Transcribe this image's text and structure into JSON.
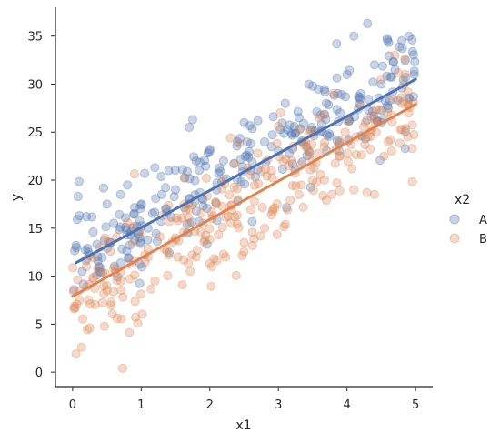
{
  "chart_data": {
    "type": "scatter",
    "title": "",
    "xlabel": "x1",
    "ylabel": "y",
    "xlim": [
      -0.25,
      5.25
    ],
    "ylim": [
      -1.5,
      38.0
    ],
    "xticks": [
      0,
      1,
      2,
      3,
      4,
      5
    ],
    "yticks": [
      0,
      5,
      10,
      15,
      20,
      25,
      30,
      35
    ],
    "grid": false,
    "legend": {
      "title": "x2",
      "placement": "right"
    },
    "series": [
      {
        "name": "A",
        "color": "#4c72b0",
        "n_points": 300,
        "fit": {
          "x": [
            0.05,
            5.0
          ],
          "y": [
            11.4,
            30.5
          ]
        },
        "points": [
          [
            0.02,
            8.6
          ],
          [
            0.05,
            13.2
          ],
          [
            0.08,
            18.3
          ],
          [
            0.1,
            16.3
          ],
          [
            0.14,
            10.5
          ],
          [
            0.2,
            16.2
          ],
          [
            0.22,
            12.9
          ],
          [
            0.3,
            14.6
          ],
          [
            0.4,
            10.9
          ],
          [
            0.5,
            17.5
          ],
          [
            0.55,
            13.5
          ],
          [
            0.6,
            15.5
          ],
          [
            0.7,
            18.5
          ],
          [
            0.8,
            19.5
          ],
          [
            0.9,
            16.5
          ],
          [
            1.0,
            17.4
          ],
          [
            1.05,
            20.7
          ],
          [
            1.1,
            15.0
          ],
          [
            1.2,
            21.3
          ],
          [
            1.3,
            18.5
          ],
          [
            1.4,
            21.0
          ],
          [
            1.5,
            19.0
          ],
          [
            1.6,
            21.1
          ],
          [
            1.7,
            25.5
          ],
          [
            1.75,
            26.3
          ],
          [
            1.8,
            22.0
          ],
          [
            1.9,
            18.0
          ],
          [
            2.0,
            23.2
          ],
          [
            2.1,
            19.0
          ],
          [
            2.2,
            22.0
          ],
          [
            2.4,
            24.0
          ],
          [
            2.5,
            26.0
          ],
          [
            2.6,
            21.0
          ],
          [
            2.7,
            26.2
          ],
          [
            2.8,
            24.0
          ],
          [
            2.9,
            23.5
          ],
          [
            3.0,
            23.0
          ],
          [
            3.1,
            28.0
          ],
          [
            3.2,
            24.7
          ],
          [
            3.3,
            26.5
          ],
          [
            3.5,
            29.8
          ],
          [
            3.6,
            25.0
          ],
          [
            3.7,
            28.0
          ],
          [
            3.85,
            34.2
          ],
          [
            3.9,
            27.0
          ],
          [
            4.0,
            31.0
          ],
          [
            4.1,
            35.0
          ],
          [
            4.2,
            29.0
          ],
          [
            4.3,
            36.3
          ],
          [
            4.4,
            32.0
          ],
          [
            4.5,
            30.0
          ],
          [
            4.6,
            27.5
          ],
          [
            4.7,
            31.5
          ],
          [
            4.8,
            34.5
          ],
          [
            4.85,
            23.3
          ],
          [
            4.95,
            34.6
          ],
          [
            4.98,
            31.0
          ]
        ]
      },
      {
        "name": "B",
        "color": "#dd8452",
        "n_points": 300,
        "fit": {
          "x": [
            0.0,
            5.0
          ],
          "y": [
            7.9,
            27.9
          ]
        },
        "points": [
          [
            0.02,
            6.6
          ],
          [
            0.05,
            1.9
          ],
          [
            0.1,
            7.5
          ],
          [
            0.2,
            11.0
          ],
          [
            0.25,
            4.6
          ],
          [
            0.3,
            9.7
          ],
          [
            0.4,
            13.0
          ],
          [
            0.5,
            8.5
          ],
          [
            0.55,
            12.6
          ],
          [
            0.6,
            10.8
          ],
          [
            0.65,
            5.6
          ],
          [
            0.7,
            9.5
          ],
          [
            0.73,
            0.4
          ],
          [
            0.8,
            15.6
          ],
          [
            0.9,
            11.6
          ],
          [
            0.95,
            5.1
          ],
          [
            1.0,
            14.5
          ],
          [
            1.1,
            12.0
          ],
          [
            1.2,
            9.5
          ],
          [
            1.3,
            16.3
          ],
          [
            1.4,
            12.2
          ],
          [
            1.5,
            14.0
          ],
          [
            1.6,
            9.1
          ],
          [
            1.7,
            17.0
          ],
          [
            1.8,
            12.0
          ],
          [
            1.9,
            15.5
          ],
          [
            2.0,
            11.3
          ],
          [
            2.1,
            17.5
          ],
          [
            2.2,
            12.3
          ],
          [
            2.3,
            24.4
          ],
          [
            2.4,
            19.1
          ],
          [
            2.5,
            13.5
          ],
          [
            2.6,
            20.5
          ],
          [
            2.7,
            22.8
          ],
          [
            2.8,
            15.0
          ],
          [
            2.9,
            21.0
          ],
          [
            3.0,
            25.6
          ],
          [
            3.1,
            15.4
          ],
          [
            3.2,
            22.0
          ],
          [
            3.3,
            18.5
          ],
          [
            3.4,
            24.0
          ],
          [
            3.5,
            20.0
          ],
          [
            3.6,
            26.5
          ],
          [
            3.7,
            17.9
          ],
          [
            3.8,
            29.0
          ],
          [
            3.9,
            22.5
          ],
          [
            4.0,
            26.2
          ],
          [
            4.1,
            19.0
          ],
          [
            4.2,
            27.8
          ],
          [
            4.3,
            24.5
          ],
          [
            4.4,
            18.5
          ],
          [
            4.5,
            30.5
          ],
          [
            4.6,
            24.0
          ],
          [
            4.7,
            33.0
          ],
          [
            4.8,
            28.0
          ],
          [
            4.85,
            31.0
          ],
          [
            4.9,
            27.0
          ],
          [
            4.95,
            23.3
          ]
        ]
      }
    ]
  }
}
